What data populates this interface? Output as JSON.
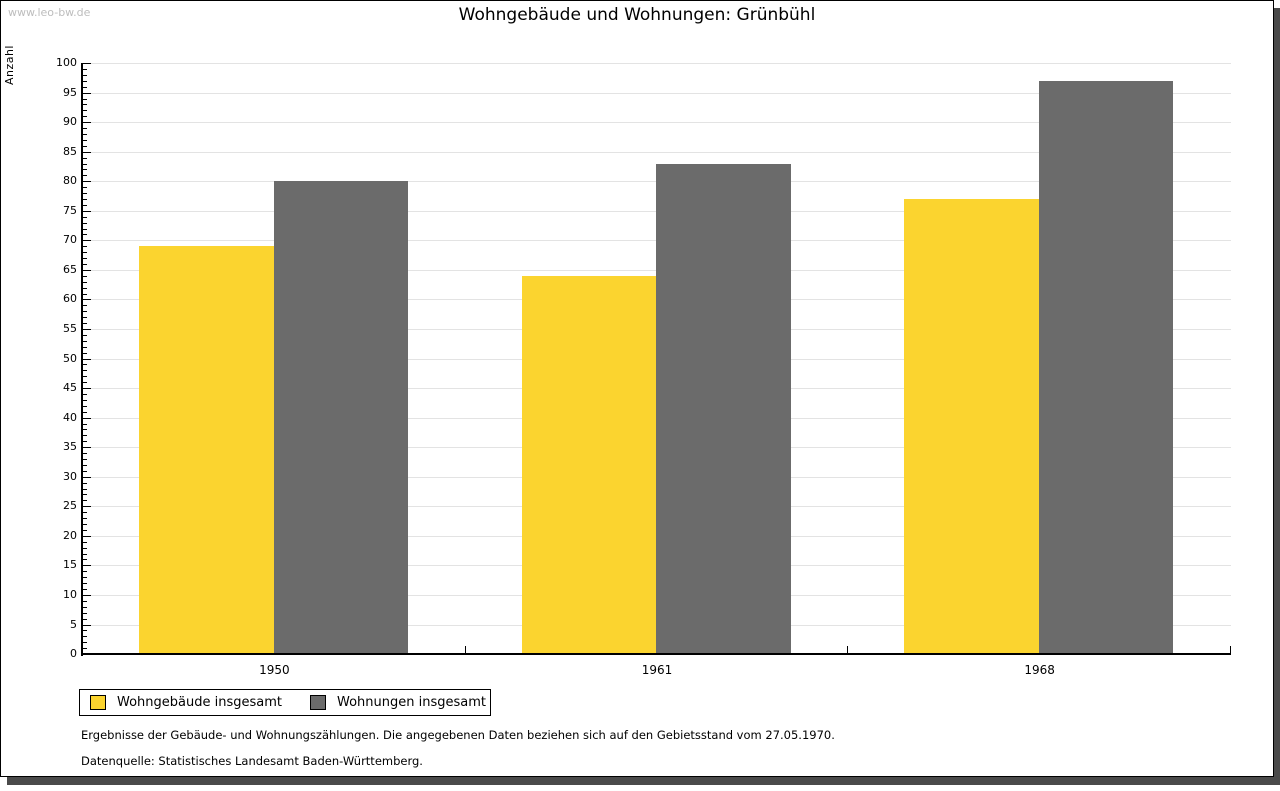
{
  "page": {
    "watermark": "www.leo-bw.de"
  },
  "chart_data": {
    "type": "bar",
    "title": "Wohngebäude und Wohnungen: Grünbühl",
    "ylabel": "Anzahl",
    "xlabel": "",
    "categories": [
      "1950",
      "1961",
      "1968"
    ],
    "series": [
      {
        "name": "Wohngebäude insgesamt",
        "color": "#FBD42F",
        "values": [
          69,
          64,
          77
        ]
      },
      {
        "name": "Wohnungen insgesamt",
        "color": "#6B6B6B",
        "values": [
          80,
          83,
          97
        ]
      }
    ],
    "ylim": [
      0,
      100
    ],
    "ytick_step": 5,
    "yminor_step": 1,
    "grid": true,
    "legend_position": "bottom-left"
  },
  "footer": {
    "lines": [
      "Ergebnisse der Gebäude- und Wohnungszählungen. Die angegebenen Daten beziehen sich auf den Gebietsstand vom 27.05.1970.",
      "Datenquelle: Statistisches Landesamt Baden-Württemberg."
    ]
  },
  "colors": {
    "gridline": "#E3E3E3",
    "axis": "#000000",
    "bar_yellow": "#FBD42F",
    "bar_gray": "#6B6B6B",
    "watermark": "#BDBDBD",
    "frame_shadow": "#4A4A4A"
  }
}
